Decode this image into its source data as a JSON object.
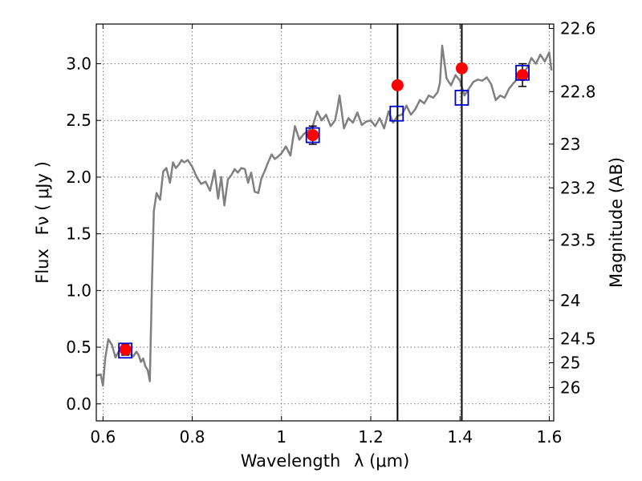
{
  "chart_data": {
    "type": "line",
    "xlabel": "Wavelength",
    "xlabel_unit": "λ (μm)",
    "ylabel": "Flux",
    "ylabel_unit": "Fν ( μJy )",
    "y2label": "Magnitude (AB)",
    "xlim": [
      0.585,
      1.61
    ],
    "ylim": [
      -0.15,
      3.35
    ],
    "grid": true,
    "x_ticks": [
      0.6,
      0.8,
      1.0,
      1.2,
      1.4,
      1.6
    ],
    "x_tick_labels": [
      "0.6",
      "0.8",
      "1",
      "1.2",
      "1.4",
      "1.6"
    ],
    "y_ticks": [
      0.0,
      0.5,
      1.0,
      1.5,
      2.0,
      2.5,
      3.0
    ],
    "y_tick_labels": [
      "0.0",
      "0.5",
      "1.0",
      "1.5",
      "2.0",
      "2.5",
      "3.0"
    ],
    "mag_ticks": [
      22.6,
      22.8,
      23,
      23.2,
      23.5,
      24,
      24.5,
      25,
      26
    ],
    "mag_tick_labels": [
      "22.6",
      "22.8",
      "23",
      "23.2",
      "23.5",
      "24",
      "24.5",
      "25",
      "26"
    ],
    "vertical_lines": [
      1.26,
      1.404
    ],
    "series": [
      {
        "kind": "spectrum",
        "color": "#808080",
        "x": [
          0.585,
          0.595,
          0.6,
          0.605,
          0.612,
          0.62,
          0.628,
          0.635,
          0.642,
          0.65,
          0.66,
          0.668,
          0.675,
          0.68,
          0.685,
          0.69,
          0.695,
          0.7,
          0.705,
          0.71,
          0.714,
          0.72,
          0.728,
          0.735,
          0.742,
          0.75,
          0.757,
          0.763,
          0.77,
          0.776,
          0.782,
          0.79,
          0.8,
          0.81,
          0.82,
          0.83,
          0.84,
          0.85,
          0.858,
          0.865,
          0.872,
          0.88,
          0.888,
          0.895,
          0.902,
          0.91,
          0.918,
          0.925,
          0.932,
          0.94,
          0.948,
          0.955,
          0.962,
          0.97,
          0.978,
          0.985,
          0.992,
          1.0,
          1.01,
          1.02,
          1.03,
          1.04,
          1.05,
          1.06,
          1.07,
          1.08,
          1.09,
          1.1,
          1.11,
          1.12,
          1.125,
          1.13,
          1.14,
          1.15,
          1.16,
          1.17,
          1.18,
          1.19,
          1.2,
          1.21,
          1.22,
          1.23,
          1.24,
          1.25,
          1.26,
          1.27,
          1.28,
          1.29,
          1.3,
          1.31,
          1.32,
          1.33,
          1.34,
          1.35,
          1.355,
          1.36,
          1.37,
          1.38,
          1.39,
          1.4,
          1.41,
          1.42,
          1.43,
          1.44,
          1.45,
          1.46,
          1.47,
          1.48,
          1.49,
          1.5,
          1.51,
          1.52,
          1.53,
          1.54,
          1.55,
          1.56,
          1.57,
          1.58,
          1.59,
          1.6,
          1.605
        ],
        "values": [
          0.25,
          0.26,
          0.16,
          0.4,
          0.57,
          0.52,
          0.41,
          0.46,
          0.5,
          0.49,
          0.44,
          0.42,
          0.46,
          0.43,
          0.37,
          0.4,
          0.33,
          0.3,
          0.2,
          1.1,
          1.7,
          1.86,
          1.8,
          2.05,
          2.08,
          1.95,
          2.13,
          2.08,
          2.11,
          2.15,
          2.13,
          2.15,
          2.09,
          2.0,
          1.94,
          1.96,
          1.88,
          2.06,
          1.81,
          2.0,
          1.75,
          1.98,
          2.02,
          2.07,
          2.04,
          2.08,
          2.07,
          1.95,
          2.04,
          1.87,
          1.86,
          1.99,
          2.05,
          2.13,
          2.2,
          2.16,
          2.18,
          2.21,
          2.27,
          2.19,
          2.45,
          2.33,
          2.38,
          2.41,
          2.45,
          2.58,
          2.5,
          2.55,
          2.45,
          2.5,
          2.6,
          2.72,
          2.43,
          2.52,
          2.48,
          2.57,
          2.46,
          2.49,
          2.5,
          2.45,
          2.52,
          2.43,
          2.58,
          2.48,
          2.54,
          2.55,
          2.63,
          2.55,
          2.6,
          2.68,
          2.65,
          2.72,
          2.7,
          2.75,
          2.83,
          3.16,
          2.87,
          2.81,
          2.9,
          2.85,
          2.72,
          2.78,
          2.84,
          2.86,
          2.85,
          2.88,
          2.82,
          2.68,
          2.72,
          2.7,
          2.78,
          2.83,
          2.87,
          2.92,
          2.96,
          3.05,
          3.0,
          3.08,
          3.02,
          3.1,
          2.94
        ]
      },
      {
        "kind": "model-photometry",
        "color": "#0000cc",
        "marker": "open-square",
        "x": [
          0.65,
          1.07,
          1.258,
          1.404,
          1.54
        ],
        "values": [
          0.47,
          2.37,
          2.56,
          2.7,
          2.92
        ]
      },
      {
        "kind": "observed-photometry",
        "color": "#ff0000",
        "marker": "filled-circle",
        "x": [
          0.65,
          1.07,
          1.26,
          1.404,
          1.54
        ],
        "values": [
          0.48,
          2.37,
          2.81,
          2.96,
          2.9
        ],
        "errors": [
          0.05,
          0.08,
          null,
          null,
          0.1
        ]
      }
    ]
  }
}
